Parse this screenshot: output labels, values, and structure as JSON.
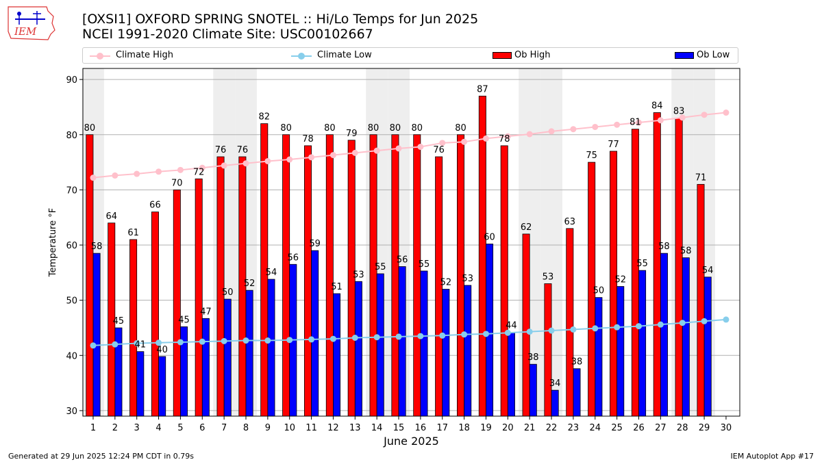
{
  "logo_text": "IEM",
  "title": "[OXSI1] OXFORD SPRING SNOTEL :: Hi/Lo Temps for Jun 2025",
  "subtitle": "NCEI 1991-2020 Climate Site: USC00102667",
  "legend": {
    "climate_high": "Climate High",
    "climate_low": "Climate Low",
    "ob_high": "Ob High",
    "ob_low": "Ob Low"
  },
  "colors": {
    "climate_high": "#ffc0cb",
    "climate_low": "#87ceeb",
    "ob_high": "#ff0000",
    "ob_low": "#0000ff",
    "weekend_band": "#eeeeee"
  },
  "footer_left": "Generated at 29 Jun 2025 12:24 PM CDT in 0.79s",
  "footer_right": "IEM Autoplot App #17",
  "chart_data": {
    "type": "bar",
    "xlabel": "June 2025",
    "ylabel": "Temperature °F",
    "ylim": [
      29,
      92
    ],
    "yticks": [
      30,
      40,
      50,
      60,
      70,
      80,
      90
    ],
    "grid": true,
    "legend_position": "top",
    "shaded_days": [
      1,
      7,
      8,
      14,
      15,
      21,
      22,
      28,
      29
    ],
    "days": [
      1,
      2,
      3,
      4,
      5,
      6,
      7,
      8,
      9,
      10,
      11,
      12,
      13,
      14,
      15,
      16,
      17,
      18,
      19,
      20,
      21,
      22,
      23,
      24,
      25,
      26,
      27,
      28,
      29,
      30
    ],
    "series": [
      {
        "name": "Ob High",
        "kind": "bar",
        "values": [
          80,
          64,
          61,
          66,
          70,
          72,
          76,
          76,
          82,
          80,
          78,
          80,
          79,
          80,
          80,
          80,
          76,
          80,
          87,
          78,
          62,
          53,
          63,
          75,
          77,
          81,
          84,
          83,
          71,
          null
        ],
        "labels": [
          "80",
          "64",
          "61",
          "66",
          "70",
          "72",
          "76",
          "76",
          "82",
          "80",
          "78",
          "80",
          "79",
          "80",
          "80",
          "80",
          "76",
          "80",
          "87",
          "78",
          "62",
          "53",
          "63",
          "75",
          "77",
          "81",
          "84",
          "83",
          "71",
          ""
        ]
      },
      {
        "name": "Ob Low",
        "kind": "bar",
        "values": [
          58.5,
          45,
          40.7,
          39.8,
          45.2,
          46.7,
          50.2,
          51.8,
          53.8,
          56.5,
          59,
          51.2,
          53.4,
          54.8,
          56.1,
          55.3,
          52,
          52.7,
          60.2,
          44.2,
          38.4,
          33.7,
          37.6,
          50.5,
          52.5,
          55.4,
          58.5,
          57.7,
          54.2,
          null
        ],
        "labels": [
          "58",
          "45",
          "41",
          "40",
          "45",
          "47",
          "50",
          "52",
          "54",
          "56",
          "59",
          "51",
          "53",
          "55",
          "56",
          "55",
          "52",
          "53",
          "60",
          "44",
          "38",
          "34",
          "38",
          "50",
          "52",
          "55",
          "58",
          "58",
          "54",
          ""
        ]
      },
      {
        "name": "Climate High",
        "kind": "line",
        "values": [
          72.2,
          72.6,
          72.9,
          73.3,
          73.6,
          74.0,
          74.4,
          74.8,
          75.2,
          75.5,
          75.9,
          76.3,
          76.7,
          77.1,
          77.5,
          77.8,
          78.5,
          78.7,
          79.3,
          79.7,
          80.1,
          80.6,
          81.0,
          81.4,
          81.8,
          82.2,
          82.6,
          83.1,
          83.6,
          84.0
        ]
      },
      {
        "name": "Climate Low",
        "kind": "line",
        "values": [
          41.8,
          42.0,
          42.2,
          42.3,
          42.4,
          42.5,
          42.6,
          42.7,
          42.7,
          42.8,
          42.9,
          43.0,
          43.2,
          43.3,
          43.4,
          43.5,
          43.6,
          43.8,
          43.9,
          44.1,
          44.3,
          44.5,
          44.7,
          44.9,
          45.1,
          45.3,
          45.6,
          45.9,
          46.2,
          46.5
        ]
      }
    ]
  }
}
